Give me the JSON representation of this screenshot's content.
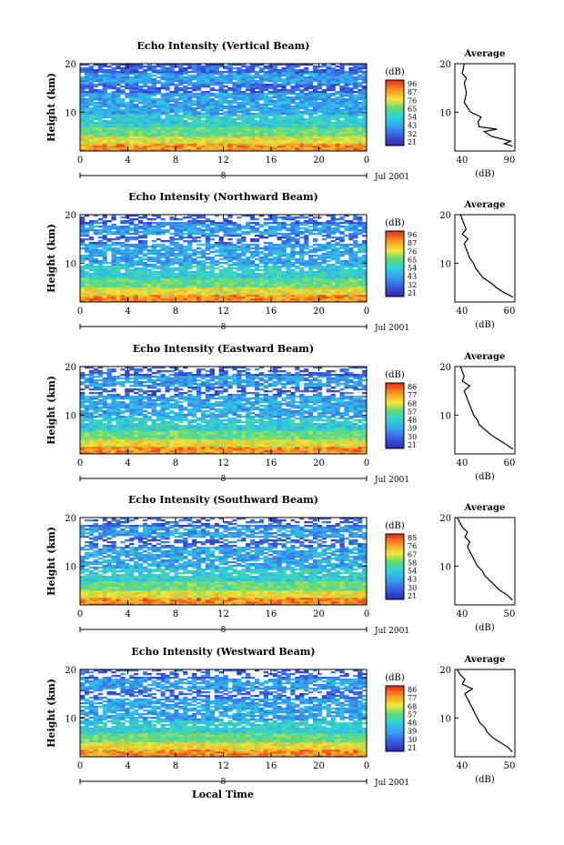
{
  "figure": {
    "xlabel": "Local Time",
    "date_label": "Jul 2001"
  },
  "chart_data": [
    {
      "type": "heatmap",
      "title": "Echo Intensity (Vertical Beam)",
      "ylabel": "Height (km)",
      "x_ticks": [
        "0",
        "4",
        "8",
        "12",
        "16",
        "20",
        "0"
      ],
      "y_ticks": [
        "20",
        "10"
      ],
      "x_range": [
        0,
        24
      ],
      "y_range": [
        2,
        20
      ],
      "colorbar_label": "(dB)",
      "colorbar_ticks": [
        "96",
        "87",
        "76",
        "65",
        "54",
        "43",
        "32",
        "21"
      ],
      "profile": {
        "title": "Average",
        "xlabel": "(dB)",
        "x_ticks": [
          "40",
          "90"
        ],
        "x_range": [
          35,
          92
        ],
        "y_ticks": [
          "20",
          "10"
        ],
        "heights": [
          3,
          3.5,
          4,
          5,
          6,
          6.5,
          7,
          8,
          9,
          10,
          11,
          12,
          13,
          14,
          15,
          16,
          17,
          18,
          19,
          20
        ],
        "values": [
          90,
          82,
          88,
          70,
          63,
          75,
          58,
          57,
          60,
          50,
          47,
          44,
          45,
          46,
          45,
          44,
          46,
          42,
          43,
          44
        ]
      }
    },
    {
      "type": "heatmap",
      "title": "Echo Intensity (Northward Beam)",
      "ylabel": "Height (km)",
      "x_ticks": [
        "0",
        "4",
        "8",
        "12",
        "16",
        "20",
        "0"
      ],
      "y_ticks": [
        "20",
        "10"
      ],
      "x_range": [
        0,
        24
      ],
      "y_range": [
        2,
        20
      ],
      "colorbar_label": "(dB)",
      "colorbar_ticks": [
        "96",
        "87",
        "76",
        "65",
        "54",
        "43",
        "32",
        "21"
      ],
      "profile": {
        "title": "Average",
        "xlabel": "(dB)",
        "x_ticks": [
          "40",
          "60"
        ],
        "x_range": [
          33,
          65
        ],
        "y_ticks": [
          "20",
          "10"
        ],
        "heights": [
          3,
          4,
          5,
          6,
          7,
          8,
          9,
          10,
          11,
          12,
          13,
          14,
          15,
          16,
          17,
          18,
          19,
          20
        ],
        "values": [
          64,
          59,
          55,
          52,
          48,
          46,
          44,
          43,
          41,
          40,
          39,
          38,
          40,
          37,
          39,
          38,
          37,
          36
        ]
      }
    },
    {
      "type": "heatmap",
      "title": "Echo Intensity (Eastward Beam)",
      "ylabel": "Height (km)",
      "x_ticks": [
        "0",
        "4",
        "8",
        "12",
        "16",
        "20",
        "0"
      ],
      "y_ticks": [
        "20",
        "10"
      ],
      "x_range": [
        0,
        24
      ],
      "y_range": [
        2,
        20
      ],
      "colorbar_label": "(dB)",
      "colorbar_ticks": [
        "86",
        "77",
        "68",
        "57",
        "48",
        "39",
        "30",
        "21"
      ],
      "profile": {
        "title": "Average",
        "xlabel": "(dB)",
        "x_ticks": [
          "40",
          "60"
        ],
        "x_range": [
          33,
          65
        ],
        "y_ticks": [
          "20",
          "10"
        ],
        "heights": [
          3,
          4,
          5,
          6,
          7,
          8,
          9,
          10,
          11,
          12,
          13,
          14,
          15,
          16,
          17,
          18,
          19,
          20
        ],
        "values": [
          64,
          60,
          56,
          52,
          49,
          46,
          45,
          43,
          42,
          41,
          40,
          39,
          38,
          41,
          37,
          38,
          37,
          36
        ]
      }
    },
    {
      "type": "heatmap",
      "title": "Echo Intensity (Southward Beam)",
      "ylabel": "Height (km)",
      "x_ticks": [
        "0",
        "4",
        "8",
        "12",
        "16",
        "20",
        "0"
      ],
      "y_ticks": [
        "20",
        "10"
      ],
      "x_range": [
        0,
        24
      ],
      "y_range": [
        2,
        20
      ],
      "colorbar_label": "(dB)",
      "colorbar_ticks": [
        "85",
        "76",
        "67",
        "58",
        "54",
        "43",
        "30",
        "21"
      ],
      "profile": {
        "title": "Average",
        "xlabel": "(dB)",
        "x_ticks": [
          "40",
          "50"
        ],
        "x_range": [
          34,
          58
        ],
        "y_ticks": [
          "20",
          "10"
        ],
        "heights": [
          3,
          4,
          5,
          6,
          7,
          8,
          9,
          10,
          11,
          12,
          13,
          14,
          15,
          16,
          17,
          18,
          19,
          20
        ],
        "values": [
          57,
          55,
          52,
          50,
          48,
          46,
          45,
          43,
          42,
          41,
          40,
          39,
          40,
          38,
          39,
          37,
          36,
          35
        ]
      }
    },
    {
      "type": "heatmap",
      "title": "Echo Intensity (Westward Beam)",
      "ylabel": "Height (km)",
      "x_ticks": [
        "0",
        "4",
        "8",
        "12",
        "16",
        "20",
        "0"
      ],
      "y_ticks": [
        "20",
        "10"
      ],
      "x_range": [
        0,
        24
      ],
      "y_range": [
        2,
        20
      ],
      "colorbar_label": "(dB)",
      "colorbar_ticks": [
        "86",
        "77",
        "68",
        "57",
        "48",
        "39",
        "30",
        "21"
      ],
      "profile": {
        "title": "Average",
        "xlabel": "(dB)",
        "x_ticks": [
          "40",
          "50"
        ],
        "x_range": [
          34,
          58
        ],
        "y_ticks": [
          "20",
          "10"
        ],
        "heights": [
          3,
          4,
          5,
          6,
          7,
          8,
          9,
          10,
          11,
          12,
          13,
          14,
          15,
          16,
          17,
          18,
          19,
          20
        ],
        "values": [
          57,
          55,
          52,
          49,
          47,
          46,
          44,
          43,
          42,
          41,
          40,
          39,
          38,
          41,
          37,
          38,
          36,
          35
        ]
      }
    }
  ]
}
